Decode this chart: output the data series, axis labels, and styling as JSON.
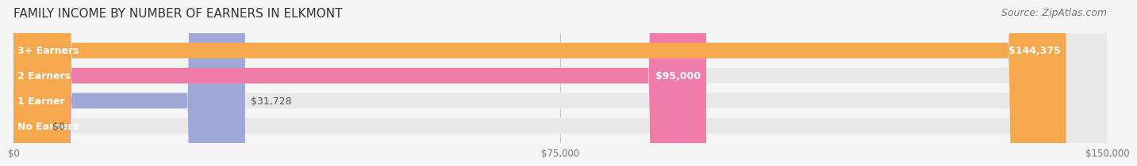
{
  "title": "FAMILY INCOME BY NUMBER OF EARNERS IN ELKMONT",
  "source": "Source: ZipAtlas.com",
  "categories": [
    "No Earners",
    "1 Earner",
    "2 Earners",
    "3+ Earners"
  ],
  "values": [
    0,
    31728,
    95000,
    144375
  ],
  "value_labels": [
    "$0",
    "$31,728",
    "$95,000",
    "$144,375"
  ],
  "bar_colors": [
    "#5ecfcf",
    "#a0a8d8",
    "#f07caa",
    "#f5a84e"
  ],
  "bar_bg_color": "#e8e8e8",
  "x_max": 150000,
  "x_ticks": [
    0,
    75000,
    150000
  ],
  "x_tick_labels": [
    "$0",
    "$75,000",
    "$150,000"
  ],
  "fig_bg_color": "#f5f5f5",
  "title_fontsize": 11,
  "source_fontsize": 9,
  "label_fontsize": 9,
  "value_fontsize": 9
}
